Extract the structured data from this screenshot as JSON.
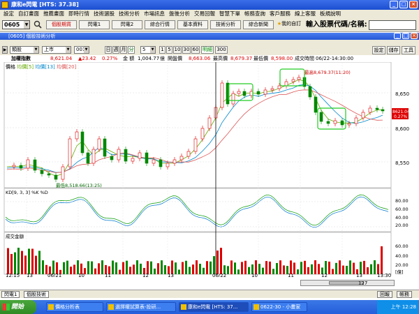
{
  "window": {
    "title": "康和e閃電 [HTS: 37.38]"
  },
  "menu": [
    "設定",
    "自訂畫面",
    "推薦畫面",
    "即時行情",
    "技術選股",
    "技術分析",
    "市場訊息",
    "盤後分析",
    "交易回報",
    "智慧下單",
    "帳務查詢",
    "客戶服務",
    "線上客服",
    "板規說明"
  ],
  "toolbar": {
    "code": "0605",
    "buttons": [
      "個股期貨",
      "閃電1",
      "閃電2",
      "綜合行情",
      "基本資料",
      "技術分析",
      "綜合新聞",
      "我的自訂"
    ],
    "input_label": "輸入股票代碼/名稱:",
    "input_value": ""
  },
  "subwindow": {
    "title": "[0605] 個股技術分析"
  },
  "controls": {
    "stock_type": "類股",
    "market": "上市",
    "index": "001",
    "period_buttons": [
      "日",
      "週",
      "月",
      "分"
    ],
    "interval": "5",
    "scale_buttons": [
      "1",
      "5",
      "10",
      "30",
      "60"
    ],
    "detail_label": "明細",
    "count": "300",
    "right_buttons": [
      "設定",
      "儲存",
      "工具"
    ]
  },
  "info": {
    "name": "加權指數",
    "price": "8,621.04",
    "change": "▲23.42",
    "pct": "0.27%",
    "amount_label": "金 額",
    "amount": "1,004.77",
    "amount_unit": "億",
    "open_label": "開盤價",
    "open": "8,663.06",
    "high_label": "最高價",
    "high": "8,679.37",
    "low_label": "最低價",
    "low": "8,598.00",
    "time_label": "成交時間",
    "time": "06/22-14:30:00"
  },
  "price_panel": {
    "legend": "價格",
    "ma5": "均價[5]",
    "ma13": "均價[13]",
    "ma20": "均價[20]",
    "high_annotation": "最高8,679.37(11:20)",
    "low_annotation": "最低8,518.66(13:25)",
    "last_price_tag": "8621.04",
    "last_pct_tag": "0.27%",
    "y_ticks": [
      "8,650",
      "8,600",
      "8,550"
    ]
  },
  "kd_panel": {
    "legend": "KD[9, 3, 3] %K %D",
    "y_ticks": [
      "80.00",
      "60.00",
      "40.00",
      "20.00"
    ]
  },
  "volume_panel": {
    "legend": "成交金額",
    "y_ticks": [
      "60.00",
      "40.00",
      "20.00"
    ],
    "unit": "[億]"
  },
  "x_axis": {
    "labels": [
      "12:15",
      "13",
      "06/21",
      "10",
      "11",
      "12",
      "13",
      "06/22",
      "10",
      "11",
      "12",
      "13",
      "13:30"
    ]
  },
  "scroll": {
    "zoom": "127"
  },
  "tabs": {
    "items": [
      "閃電1",
      "個股技術"
    ],
    "right": [
      "回報",
      "帳務"
    ]
  },
  "taskbar": {
    "start": "開始",
    "tasks": [
      "價格分析表",
      "選擇權試算表-投研...",
      "康和e閃電 [HTS: 37...",
      "0622-30 - 小畫家"
    ],
    "clock": "上午 12:28"
  },
  "chart_data": {
    "type": "candlestick",
    "ylim": [
      8500,
      8700
    ],
    "high": 8679.37,
    "low": 8518.66,
    "last": 8621.04
  }
}
